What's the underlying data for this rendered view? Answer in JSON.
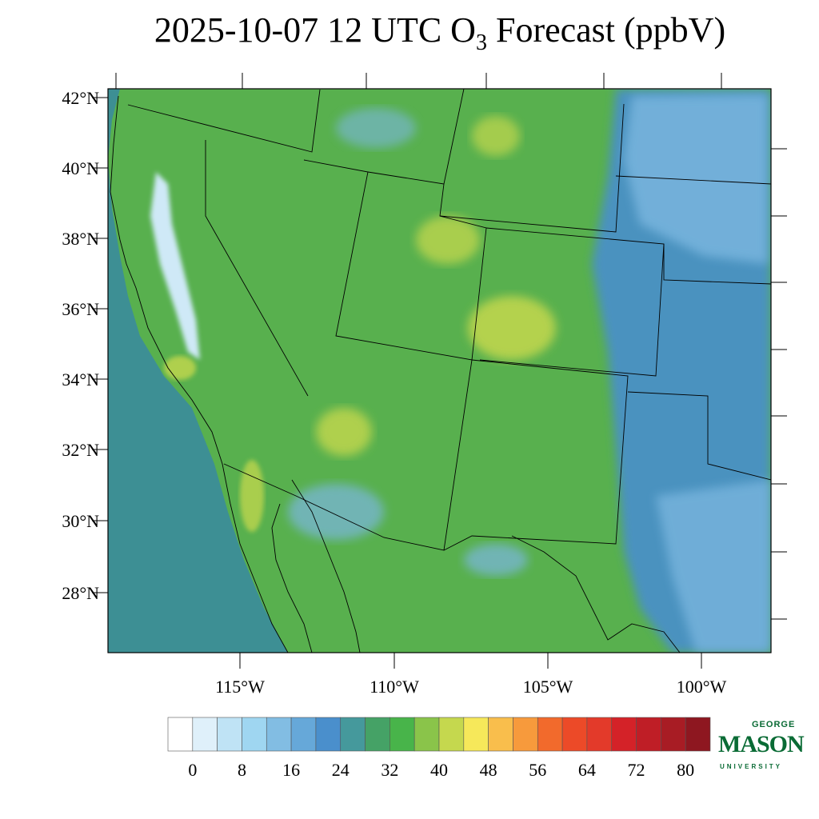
{
  "title": {
    "prefix": "2025-10-07 12 UTC O",
    "subscript": "3",
    "suffix": " Forecast (ppbV)"
  },
  "map": {
    "lat_labels": [
      "42°N",
      "40°N",
      "38°N",
      "36°N",
      "34°N",
      "32°N",
      "30°N",
      "28°N"
    ],
    "lon_labels": [
      "115°W",
      "110°W",
      "105°W",
      "100°W"
    ]
  },
  "colorbar": {
    "labels": [
      "0",
      "8",
      "16",
      "24",
      "32",
      "40",
      "48",
      "56",
      "64",
      "72",
      "80"
    ],
    "colors": [
      "#ffffff",
      "#dff0fa",
      "#bfe3f5",
      "#9fd6f1",
      "#82bde3",
      "#66a8d9",
      "#4a8fcc",
      "#45999c",
      "#45a266",
      "#48b44a",
      "#8ac44a",
      "#c5d84e",
      "#f6e85a",
      "#f9be4c",
      "#f79a3c",
      "#f26a2c",
      "#ec4a28",
      "#e33a2a",
      "#d42228",
      "#bf1e26",
      "#a81c24",
      "#8e1720"
    ]
  },
  "logo": {
    "line1": "GEORGE",
    "line2": "MASON",
    "line3": "UNIVERSITY"
  },
  "colors": {
    "ocean": "#3d8f94",
    "land_base": "#58b04e",
    "highlands": "#c5d84e",
    "low_blue": "#7bb7e0",
    "plains_blue": "#4a8fcc",
    "brand_green": "#0a6b35"
  }
}
